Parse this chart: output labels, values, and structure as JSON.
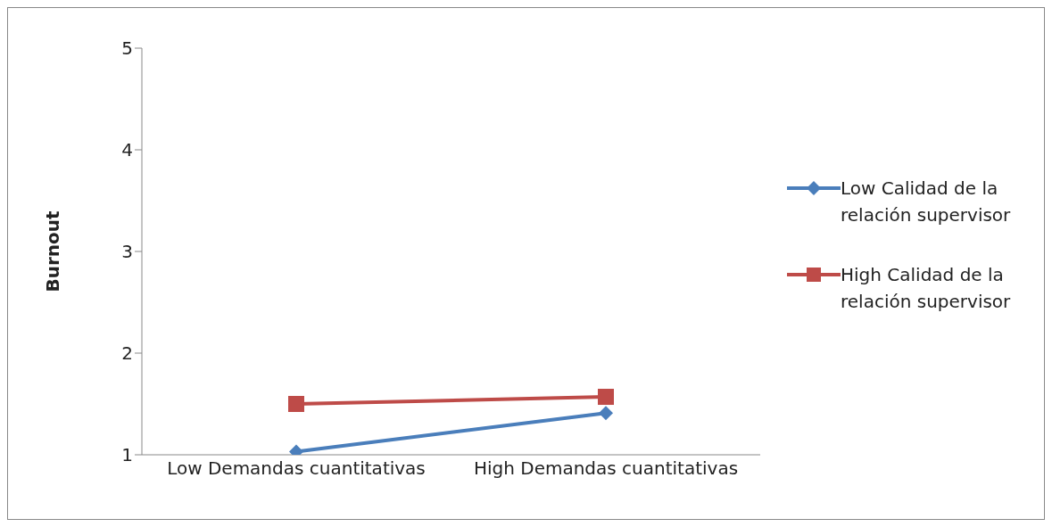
{
  "chart_data": {
    "type": "line",
    "ylabel": "Burnout",
    "categories": [
      "Low Demandas cuantitativas",
      "High Demandas cuantitativas"
    ],
    "series": [
      {
        "name": "Low Calidad de la relación supervisor",
        "color": "#4a7ebb",
        "values": [
          1.03,
          1.41
        ],
        "marker": "diamond"
      },
      {
        "name": "High Calidad de la relación supervisor",
        "color": "#be4b48",
        "values": [
          1.5,
          1.57
        ],
        "marker": "square"
      }
    ],
    "ylim": [
      1,
      5
    ],
    "yticks": [
      1,
      2,
      3,
      4,
      5
    ],
    "grid": false,
    "legend": "right",
    "line_style": "solid"
  }
}
